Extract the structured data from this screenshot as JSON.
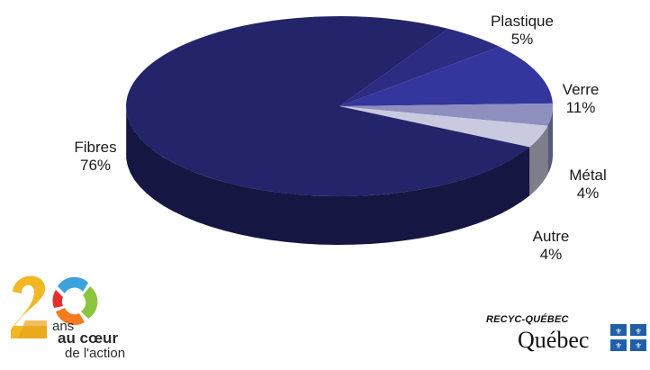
{
  "chart_data": {
    "type": "pie",
    "title": "",
    "categories": [
      "Fibres",
      "Plastique",
      "Verre",
      "Métal",
      "Autre"
    ],
    "values": [
      76,
      5,
      11,
      4,
      4
    ],
    "value_labels": [
      "76%",
      "5%",
      "11%",
      "4%",
      "4%"
    ],
    "colors": [
      "#23246a",
      "#2b2c82",
      "#34369e",
      "#8d8fbf",
      "#c9cae0"
    ],
    "style": "3d-perspective"
  },
  "logo20": {
    "line1": "ans",
    "line2": "au cœur",
    "line3": "de l'action"
  },
  "branding": {
    "agency": "RECYC-QUÉBEC",
    "government": "Québec"
  }
}
